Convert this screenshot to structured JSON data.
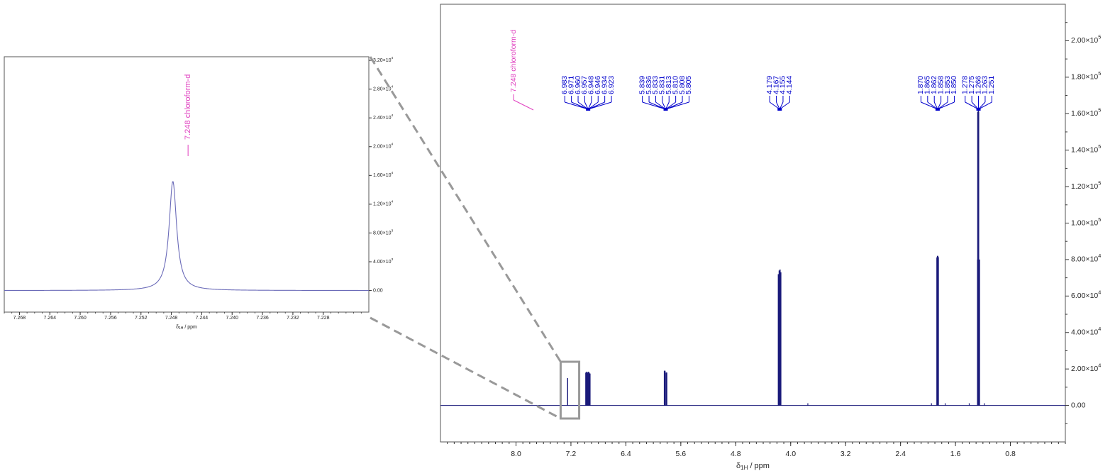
{
  "chart_data": [
    {
      "type": "line",
      "name": "main-spectrum",
      "xlabel": "δ1H / ppm",
      "xlim": [
        9.1,
        0.0
      ],
      "ylim": [
        -20000,
        220000
      ],
      "x_ticks": [
        "8.0",
        "7.2",
        "6.4",
        "5.6",
        "4.8",
        "4.0",
        "3.2",
        "2.4",
        "1.6",
        "0.8"
      ],
      "y_ticks": [
        {
          "value": 0,
          "mant": "0.00",
          "exp": ""
        },
        {
          "value": 20000,
          "mant": "2.00×10",
          "exp": "4"
        },
        {
          "value": 40000,
          "mant": "4.00×10",
          "exp": "4"
        },
        {
          "value": 60000,
          "mant": "6.00×10",
          "exp": "4"
        },
        {
          "value": 80000,
          "mant": "8.00×10",
          "exp": "4"
        },
        {
          "value": 100000,
          "mant": "1.00×10",
          "exp": "5"
        },
        {
          "value": 120000,
          "mant": "1.20×10",
          "exp": "5"
        },
        {
          "value": 140000,
          "mant": "1.40×10",
          "exp": "5"
        },
        {
          "value": 160000,
          "mant": "1.60×10",
          "exp": "5"
        },
        {
          "value": 180000,
          "mant": "1.80×10",
          "exp": "5"
        },
        {
          "value": 200000,
          "mant": "2.00×10",
          "exp": "5"
        }
      ],
      "peaks": [
        {
          "ppm": 7.248,
          "height": 15000,
          "solvent": true
        },
        {
          "ppm": 6.983,
          "height": 18000
        },
        {
          "ppm": 6.971,
          "height": 18500
        },
        {
          "ppm": 6.96,
          "height": 18000
        },
        {
          "ppm": 6.957,
          "height": 18000
        },
        {
          "ppm": 6.948,
          "height": 18000
        },
        {
          "ppm": 6.946,
          "height": 18500
        },
        {
          "ppm": 6.934,
          "height": 18000
        },
        {
          "ppm": 6.923,
          "height": 17500
        },
        {
          "ppm": 5.839,
          "height": 19000
        },
        {
          "ppm": 5.836,
          "height": 19000
        },
        {
          "ppm": 5.833,
          "height": 19000
        },
        {
          "ppm": 5.831,
          "height": 19000
        },
        {
          "ppm": 5.813,
          "height": 18000
        },
        {
          "ppm": 5.81,
          "height": 18000
        },
        {
          "ppm": 5.808,
          "height": 18000
        },
        {
          "ppm": 5.805,
          "height": 18000
        },
        {
          "ppm": 4.179,
          "height": 72000
        },
        {
          "ppm": 4.167,
          "height": 74000
        },
        {
          "ppm": 4.155,
          "height": 74500
        },
        {
          "ppm": 4.144,
          "height": 73000
        },
        {
          "ppm": 1.87,
          "height": 81000
        },
        {
          "ppm": 1.865,
          "height": 81500
        },
        {
          "ppm": 1.862,
          "height": 82000
        },
        {
          "ppm": 1.858,
          "height": 82000
        },
        {
          "ppm": 1.853,
          "height": 81500
        },
        {
          "ppm": 1.85,
          "height": 81000
        },
        {
          "ppm": 1.278,
          "height": 80000
        },
        {
          "ppm": 1.275,
          "height": 161000
        },
        {
          "ppm": 1.266,
          "height": 162000
        },
        {
          "ppm": 1.263,
          "height": 161000
        },
        {
          "ppm": 1.251,
          "height": 80000
        }
      ],
      "groups": [
        {
          "hub_ppm": 6.95,
          "labels": [
            "6.983",
            "6.971",
            "6.960",
            "6.957",
            "6.948",
            "6.946",
            "6.934",
            "6.923"
          ]
        },
        {
          "hub_ppm": 5.82,
          "labels": [
            "5.839",
            "5.836",
            "5.833",
            "5.831",
            "5.813",
            "5.810",
            "5.808",
            "5.805"
          ]
        },
        {
          "hub_ppm": 4.16,
          "labels": [
            "4.179",
            "4.167",
            "4.155",
            "4.144"
          ]
        },
        {
          "hub_ppm": 1.86,
          "labels": [
            "1.870",
            "1.865",
            "1.862",
            "1.858",
            "1.853",
            "1.850"
          ]
        },
        {
          "hub_ppm": 1.265,
          "labels": [
            "1.278",
            "1.275",
            "1.266",
            "1.263",
            "1.251"
          ]
        }
      ],
      "solvent_label": "7.248 chloroform-d",
      "colors": {
        "trace": "#1a1a7a",
        "labels": "#0000cc",
        "solvent": "#e040c0",
        "frame": "#555555"
      }
    },
    {
      "type": "line",
      "name": "inset-spectrum",
      "xlabel": "δ1H / ppm",
      "xlim": [
        7.27,
        7.222
      ],
      "ylim": [
        -3000,
        32500
      ],
      "x_ticks": [
        "7.268",
        "7.264",
        "7.260",
        "7.256",
        "7.252",
        "7.248",
        "7.244",
        "7.240",
        "7.236",
        "7.232",
        "7.228"
      ],
      "y_ticks": [
        {
          "value": 0,
          "mant": "0.00",
          "exp": ""
        },
        {
          "value": 4000,
          "mant": "4.00×10",
          "exp": "3"
        },
        {
          "value": 8000,
          "mant": "8.00×10",
          "exp": "3"
        },
        {
          "value": 12000,
          "mant": "1.20×10",
          "exp": "4"
        },
        {
          "value": 16000,
          "mant": "1.60×10",
          "exp": "4"
        },
        {
          "value": 20000,
          "mant": "2.00×10",
          "exp": "4"
        },
        {
          "value": 24000,
          "mant": "2.40×10",
          "exp": "4"
        },
        {
          "value": 28000,
          "mant": "2.80×10",
          "exp": "4"
        },
        {
          "value": 32000,
          "mant": "3.20×10",
          "exp": "4"
        }
      ],
      "peak": {
        "ppm": 7.2478,
        "height": 15200,
        "fwhm": 0.0012
      },
      "solvent_label": "7.248 chloroform-d",
      "colors": {
        "trace": "#6a6ab8",
        "solvent": "#e040c0",
        "frame": "#555555"
      }
    }
  ]
}
